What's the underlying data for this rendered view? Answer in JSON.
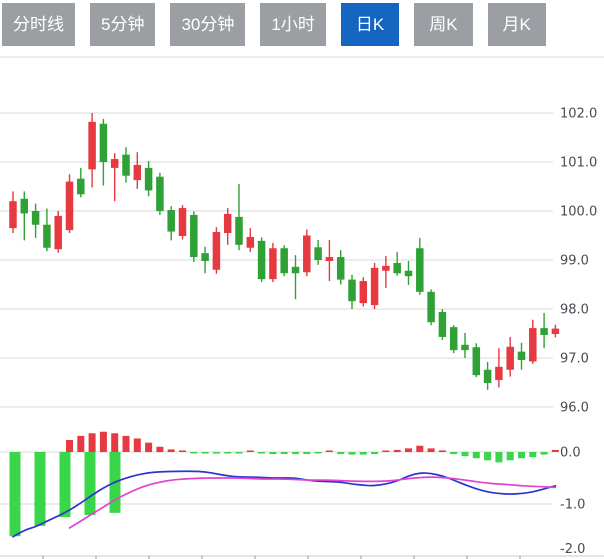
{
  "toolbar": {
    "tabs": [
      {
        "label": "分时线",
        "active": false
      },
      {
        "label": "5分钟",
        "active": false
      },
      {
        "label": "30分钟",
        "active": false
      },
      {
        "label": "1小时",
        "active": false
      },
      {
        "label": "日K",
        "active": true
      },
      {
        "label": "周K",
        "active": false
      },
      {
        "label": "月K",
        "active": false
      }
    ]
  },
  "colors": {
    "up": "#e63940",
    "down": "#2fa136",
    "macd_red": "#e63940",
    "macd_green": "#39d64a",
    "dif_line": "#2c35cc",
    "dea_line": "#e044d0",
    "grid": "#d8d8d8",
    "axis_line": "#c9c9c9",
    "axis_text": "#4a4a52",
    "tab_bg": "#9b9fa3",
    "tab_active_bg": "#1565c0",
    "tab_text": "#ffffff",
    "background": "#ffffff"
  },
  "chart_data": {
    "type": "candlestick",
    "title": "",
    "legend_position": "none",
    "grid": true,
    "panels": [
      "price",
      "macd"
    ],
    "price_axis": {
      "side": "right",
      "ticks": [
        102.0,
        101.0,
        100.0,
        99.0,
        98.0,
        97.0,
        96.0
      ],
      "labels": [
        "102.0",
        "101.0",
        "100.0",
        "99.0",
        "98.0",
        "97.0",
        "96.0"
      ],
      "range": [
        95.7,
        103.2
      ]
    },
    "macd_axis": {
      "side": "right",
      "ticks": [
        0.0,
        -1.0,
        -2.0
      ],
      "labels": [
        "0.0",
        "-1.0",
        "-2.0"
      ],
      "range": [
        -2.0,
        0.3
      ]
    },
    "candles_ohlc": [
      [
        99.65,
        100.4,
        99.55,
        100.2
      ],
      [
        100.25,
        100.4,
        99.4,
        99.95
      ],
      [
        100.0,
        100.15,
        99.45,
        99.72
      ],
      [
        99.72,
        100.05,
        99.18,
        99.25
      ],
      [
        99.22,
        100.0,
        99.15,
        99.9
      ],
      [
        99.61,
        100.75,
        99.55,
        100.6
      ],
      [
        100.66,
        100.88,
        100.28,
        100.34
      ],
      [
        100.85,
        102.0,
        100.48,
        101.82
      ],
      [
        101.78,
        101.88,
        100.52,
        101.0
      ],
      [
        100.88,
        101.18,
        100.2,
        101.06
      ],
      [
        101.15,
        101.3,
        100.58,
        100.72
      ],
      [
        100.63,
        101.2,
        100.45,
        100.94
      ],
      [
        100.88,
        101.02,
        100.3,
        100.42
      ],
      [
        100.7,
        100.78,
        99.92,
        100.0
      ],
      [
        100.02,
        100.1,
        99.4,
        99.58
      ],
      [
        99.49,
        100.12,
        99.42,
        100.06
      ],
      [
        99.92,
        99.99,
        98.96,
        99.06
      ],
      [
        99.14,
        99.27,
        98.73,
        98.98
      ],
      [
        98.8,
        99.67,
        98.72,
        99.57
      ],
      [
        99.55,
        100.06,
        99.31,
        99.94
      ],
      [
        99.88,
        100.55,
        99.2,
        99.31
      ],
      [
        99.25,
        99.65,
        99.16,
        99.47
      ],
      [
        99.39,
        99.46,
        98.55,
        98.61
      ],
      [
        98.61,
        99.35,
        98.55,
        99.24
      ],
      [
        99.24,
        99.3,
        98.67,
        98.73
      ],
      [
        98.86,
        99.1,
        98.2,
        98.73
      ],
      [
        98.75,
        99.62,
        98.67,
        99.5
      ],
      [
        99.26,
        99.41,
        98.9,
        99.0
      ],
      [
        98.98,
        99.41,
        98.57,
        99.06
      ],
      [
        99.06,
        99.2,
        98.5,
        98.6
      ],
      [
        98.6,
        98.7,
        98.0,
        98.16
      ],
      [
        98.12,
        98.65,
        98.05,
        98.57
      ],
      [
        98.08,
        98.94,
        98.0,
        98.84
      ],
      [
        98.78,
        99.08,
        98.43,
        98.88
      ],
      [
        98.94,
        99.16,
        98.68,
        98.73
      ],
      [
        98.78,
        98.98,
        98.49,
        98.67
      ],
      [
        99.24,
        99.45,
        98.29,
        98.35
      ],
      [
        98.35,
        98.4,
        97.67,
        97.73
      ],
      [
        97.94,
        98.0,
        97.37,
        97.43
      ],
      [
        97.63,
        97.67,
        97.1,
        97.16
      ],
      [
        97.27,
        97.51,
        97.0,
        97.16
      ],
      [
        97.22,
        97.3,
        96.61,
        96.65
      ],
      [
        96.76,
        96.92,
        96.35,
        96.49
      ],
      [
        96.55,
        97.2,
        96.4,
        96.82
      ],
      [
        96.76,
        97.43,
        96.62,
        97.23
      ],
      [
        97.13,
        97.31,
        96.76,
        96.96
      ],
      [
        96.93,
        97.78,
        96.88,
        97.61
      ],
      [
        97.61,
        97.92,
        97.2,
        97.47
      ],
      [
        97.49,
        97.68,
        97.42,
        97.6
      ]
    ],
    "macd": {
      "warmup_bars": {
        "x": [
          15,
          40,
          65,
          90,
          115
        ],
        "values": [
          -1.62,
          -1.42,
          -1.25,
          -1.21,
          -1.17
        ]
      },
      "histogram_start_index": 5,
      "histogram": [
        0.23,
        0.31,
        0.36,
        0.39,
        0.36,
        0.31,
        0.26,
        0.18,
        0.1,
        0.05,
        0.02,
        -0.02,
        -0.03,
        -0.03,
        -0.03,
        -0.02,
        0.02,
        -0.03,
        -0.04,
        -0.04,
        -0.04,
        -0.04,
        -0.01,
        0.02,
        -0.04,
        -0.05,
        -0.05,
        -0.04,
        0.02,
        0.04,
        0.07,
        0.12,
        0.07,
        0.03,
        -0.04,
        -0.08,
        -0.12,
        -0.16,
        -0.2,
        -0.16,
        -0.12,
        -0.1,
        -0.05,
        0.04
      ],
      "dif": [
        -1.63,
        -1.5,
        -1.44,
        -1.33,
        -1.23,
        -1.12,
        -0.98,
        -0.83,
        -0.69,
        -0.58,
        -0.5,
        -0.44,
        -0.4,
        -0.38,
        -0.375,
        -0.37,
        -0.37,
        -0.38,
        -0.42,
        -0.46,
        -0.48,
        -0.48,
        -0.49,
        -0.5,
        -0.5,
        -0.5,
        -0.54,
        -0.56,
        -0.57,
        -0.58,
        -0.615,
        -0.64,
        -0.65,
        -0.615,
        -0.56,
        -0.46,
        -0.4,
        -0.41,
        -0.46,
        -0.54,
        -0.63,
        -0.71,
        -0.77,
        -0.8,
        -0.81,
        -0.8,
        -0.77,
        -0.71,
        -0.65
      ],
      "dea": [
        null,
        null,
        null,
        null,
        null,
        -1.46,
        -1.33,
        -1.19,
        -1.06,
        -0.92,
        -0.81,
        -0.71,
        -0.63,
        -0.58,
        -0.54,
        -0.52,
        -0.51,
        -0.5,
        -0.5,
        -0.5,
        -0.5,
        -0.51,
        -0.52,
        -0.52,
        -0.52,
        -0.53,
        -0.54,
        -0.54,
        -0.54,
        -0.55,
        -0.56,
        -0.565,
        -0.565,
        -0.56,
        -0.54,
        -0.51,
        -0.49,
        -0.48,
        -0.49,
        -0.51,
        -0.54,
        -0.57,
        -0.6,
        -0.615,
        -0.63,
        -0.65,
        -0.66,
        -0.67,
        -0.68
      ]
    }
  }
}
